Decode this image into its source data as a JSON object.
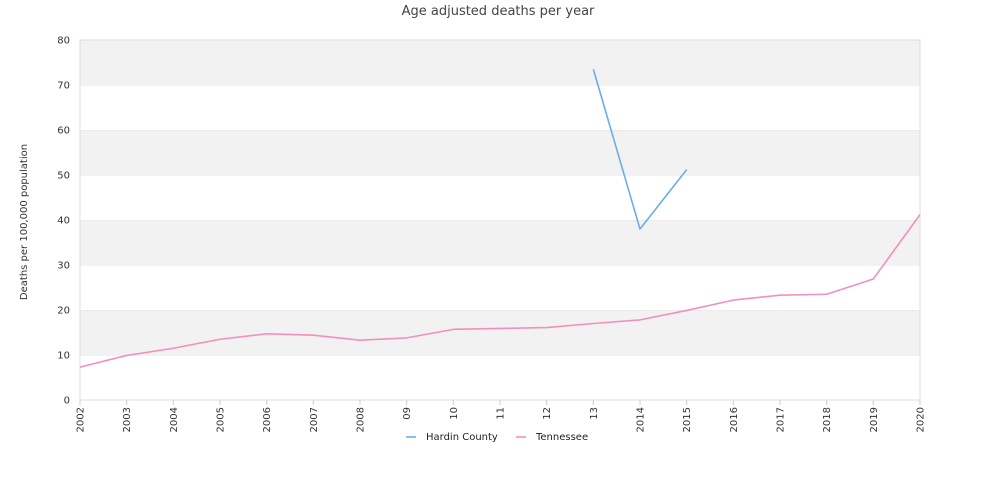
{
  "chart_data": {
    "type": "line",
    "title": "Age adjusted deaths per year",
    "xlabel": "",
    "ylabel": "Deaths per 100,000 population",
    "ylim": [
      0,
      80
    ],
    "y_ticks": [
      0,
      10,
      20,
      30,
      40,
      50,
      60,
      70,
      80
    ],
    "x": [
      "2002",
      "2003",
      "2004",
      "2005",
      "2006",
      "2007",
      "2008",
      "09",
      "10",
      "11",
      "12",
      "13",
      "2014",
      "2015",
      "2016",
      "2017",
      "2018",
      "2019",
      "2020"
    ],
    "grid": "alternating horizontal bands",
    "legend_position": "bottom-center",
    "series": [
      {
        "name": "Hardin County",
        "color": "#6aaee8",
        "values": [
          null,
          null,
          null,
          null,
          null,
          null,
          null,
          null,
          null,
          null,
          null,
          73.5,
          38,
          51.2,
          null,
          null,
          null,
          null,
          null
        ]
      },
      {
        "name": "Tennessee",
        "color": "#f48fbd",
        "values": [
          7.3,
          9.9,
          11.5,
          13.5,
          14.7,
          14.4,
          13.3,
          13.8,
          15.7,
          15.9,
          16.1,
          17.0,
          17.8,
          19.9,
          22.2,
          23.3,
          23.5,
          26.9,
          41.2
        ]
      }
    ]
  }
}
